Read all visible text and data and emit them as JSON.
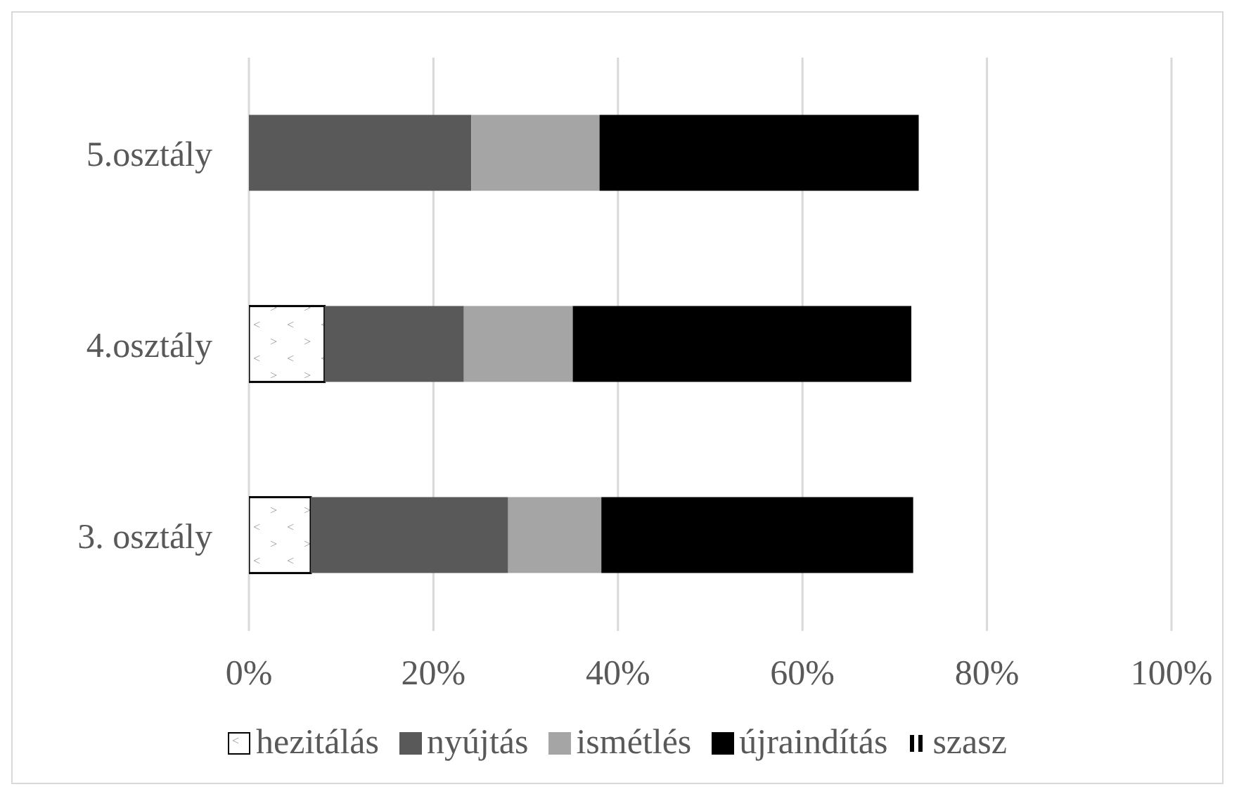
{
  "chart_data": {
    "type": "bar",
    "orientation": "horizontal",
    "stacked": true,
    "categories": [
      "5.osztály",
      "4.osztály",
      "3. osztály"
    ],
    "series": [
      {
        "name": "hezitálás",
        "color": "#ffffff",
        "values": [
          0,
          8.2,
          6.7
        ]
      },
      {
        "name": "nyújtás",
        "color": "#595959",
        "values": [
          24.1,
          15.1,
          21.4
        ]
      },
      {
        "name": "ismétlés",
        "color": "#a5a5a5",
        "values": [
          13.9,
          11.8,
          10.1
        ]
      },
      {
        "name": "újraindítás",
        "color": "#000000",
        "values": [
          34.6,
          36.7,
          33.8
        ]
      },
      {
        "name": "szasz",
        "color": "#000000",
        "values": [
          0,
          0,
          0
        ]
      }
    ],
    "xlim": [
      0,
      100
    ],
    "xticks": [
      {
        "value": 0,
        "label": "0%"
      },
      {
        "value": 20,
        "label": "20%"
      },
      {
        "value": 40,
        "label": "40%"
      },
      {
        "value": 60,
        "label": "60%"
      },
      {
        "value": 80,
        "label": "80%"
      },
      {
        "value": 100,
        "label": "100%"
      }
    ],
    "grid": "x",
    "legend": "bottom"
  }
}
